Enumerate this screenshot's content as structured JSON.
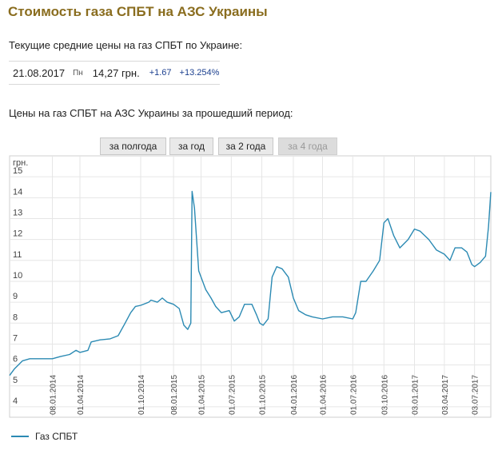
{
  "header": {
    "title": "Стоимость газа СПБТ на АЗС Украины",
    "subtitle": "Текущие средние цены на газ СПБТ по Украине:"
  },
  "current": {
    "date": "21.08.2017",
    "weekday": "Пн",
    "price": "14,27 грн.",
    "change": "+1.67",
    "change_pct": "+13.254%"
  },
  "period": {
    "title": "Цены на газ СПБТ на АЗС Украины за прошедший период:",
    "buttons": [
      {
        "label": "за полгода",
        "enabled": true
      },
      {
        "label": "за год",
        "enabled": true
      },
      {
        "label": "за 2 года",
        "enabled": true
      },
      {
        "label": "за 4 года",
        "enabled": false
      }
    ]
  },
  "colors": {
    "title": "#8a6d1f",
    "line": "#2b8ab3",
    "grid": "#e6e6e6"
  },
  "legend": {
    "label": "Газ СПБТ"
  },
  "chart_data": {
    "type": "line",
    "title": "",
    "ylabel": "грн.",
    "ylim": [
      3.5,
      16
    ],
    "yticks": [
      4,
      5,
      6,
      7,
      8,
      9,
      10,
      11,
      12,
      13,
      14,
      15
    ],
    "xlim": [
      "2013-09-01",
      "2017-08-21"
    ],
    "xticks": [
      {
        "date": "2014-01-08",
        "label": "08.01.2014"
      },
      {
        "date": "2014-04-01",
        "label": "01.04.2014"
      },
      {
        "date": "2014-10-01",
        "label": "01.10.2014"
      },
      {
        "date": "2015-01-08",
        "label": "08.01.2015"
      },
      {
        "date": "2015-04-01",
        "label": "01.04.2015"
      },
      {
        "date": "2015-07-01",
        "label": "01.07.2015"
      },
      {
        "date": "2015-10-01",
        "label": "01.10.2015"
      },
      {
        "date": "2016-01-04",
        "label": "04.01.2016"
      },
      {
        "date": "2016-04-01",
        "label": "01.04.2016"
      },
      {
        "date": "2016-07-01",
        "label": "01.07.2016"
      },
      {
        "date": "2016-10-03",
        "label": "03.10.2016"
      },
      {
        "date": "2017-01-03",
        "label": "03.01.2017"
      },
      {
        "date": "2017-04-03",
        "label": "03.04.2017"
      },
      {
        "date": "2017-07-03",
        "label": "03.07.2017"
      }
    ],
    "grid": true,
    "legend_position": "bottom-left",
    "series": [
      {
        "name": "Газ СПБТ",
        "points": [
          [
            "2013-09-01",
            5.5
          ],
          [
            "2013-09-15",
            5.8
          ],
          [
            "2013-10-10",
            6.2
          ],
          [
            "2013-11-01",
            6.3
          ],
          [
            "2013-12-01",
            6.3
          ],
          [
            "2014-01-08",
            6.3
          ],
          [
            "2014-02-01",
            6.4
          ],
          [
            "2014-03-01",
            6.5
          ],
          [
            "2014-03-20",
            6.7
          ],
          [
            "2014-04-01",
            6.6
          ],
          [
            "2014-04-25",
            6.7
          ],
          [
            "2014-05-05",
            7.1
          ],
          [
            "2014-06-01",
            7.2
          ],
          [
            "2014-07-01",
            7.25
          ],
          [
            "2014-07-25",
            7.4
          ],
          [
            "2014-08-15",
            8.0
          ],
          [
            "2014-09-01",
            8.5
          ],
          [
            "2014-09-15",
            8.8
          ],
          [
            "2014-10-01",
            8.85
          ],
          [
            "2014-10-25",
            9.0
          ],
          [
            "2014-11-01",
            9.1
          ],
          [
            "2014-11-20",
            9.0
          ],
          [
            "2014-12-05",
            9.2
          ],
          [
            "2014-12-20",
            9.0
          ],
          [
            "2015-01-08",
            8.9
          ],
          [
            "2015-01-25",
            8.7
          ],
          [
            "2015-02-08",
            7.9
          ],
          [
            "2015-02-20",
            7.7
          ],
          [
            "2015-03-01",
            8.0
          ],
          [
            "2015-03-05",
            14.3
          ],
          [
            "2015-03-12",
            13.5
          ],
          [
            "2015-03-25",
            10.5
          ],
          [
            "2015-04-15",
            9.6
          ],
          [
            "2015-05-01",
            9.2
          ],
          [
            "2015-05-15",
            8.8
          ],
          [
            "2015-06-01",
            8.5
          ],
          [
            "2015-06-25",
            8.6
          ],
          [
            "2015-07-10",
            8.1
          ],
          [
            "2015-07-25",
            8.3
          ],
          [
            "2015-08-10",
            8.9
          ],
          [
            "2015-09-01",
            8.9
          ],
          [
            "2015-09-15",
            8.4
          ],
          [
            "2015-09-25",
            8.0
          ],
          [
            "2015-10-05",
            7.9
          ],
          [
            "2015-10-20",
            8.2
          ],
          [
            "2015-11-01",
            10.2
          ],
          [
            "2015-11-15",
            10.7
          ],
          [
            "2015-12-01",
            10.6
          ],
          [
            "2015-12-20",
            10.2
          ],
          [
            "2016-01-04",
            9.2
          ],
          [
            "2016-01-20",
            8.6
          ],
          [
            "2016-02-10",
            8.4
          ],
          [
            "2016-03-01",
            8.3
          ],
          [
            "2016-04-01",
            8.2
          ],
          [
            "2016-05-01",
            8.3
          ],
          [
            "2016-06-01",
            8.3
          ],
          [
            "2016-07-01",
            8.2
          ],
          [
            "2016-07-10",
            8.5
          ],
          [
            "2016-07-25",
            10.0
          ],
          [
            "2016-08-10",
            10.0
          ],
          [
            "2016-09-01",
            10.5
          ],
          [
            "2016-09-20",
            11.0
          ],
          [
            "2016-10-03",
            12.8
          ],
          [
            "2016-10-15",
            13.0
          ],
          [
            "2016-11-01",
            12.2
          ],
          [
            "2016-11-20",
            11.6
          ],
          [
            "2016-12-15",
            12.0
          ],
          [
            "2017-01-03",
            12.5
          ],
          [
            "2017-01-20",
            12.4
          ],
          [
            "2017-02-15",
            12.0
          ],
          [
            "2017-03-10",
            11.5
          ],
          [
            "2017-04-03",
            11.3
          ],
          [
            "2017-04-20",
            11.0
          ],
          [
            "2017-05-05",
            11.6
          ],
          [
            "2017-05-25",
            11.6
          ],
          [
            "2017-06-10",
            11.4
          ],
          [
            "2017-06-25",
            10.8
          ],
          [
            "2017-07-03",
            10.7
          ],
          [
            "2017-07-20",
            10.9
          ],
          [
            "2017-08-05",
            11.2
          ],
          [
            "2017-08-14",
            12.6
          ],
          [
            "2017-08-21",
            14.27
          ]
        ]
      }
    ]
  }
}
